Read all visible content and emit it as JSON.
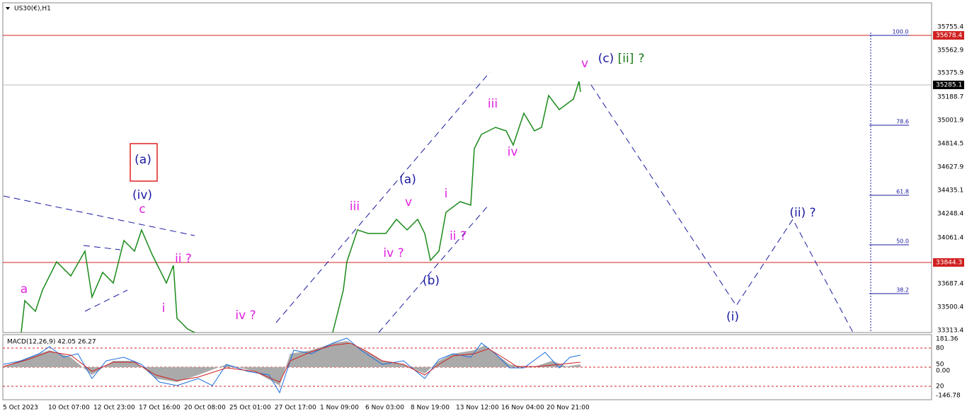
{
  "header": {
    "symbol": "US30(€),H1"
  },
  "price_axis": {
    "labels": [
      "35755.4",
      "35562.9",
      "35375.9",
      "35188.7",
      "35001.9",
      "34814.5",
      "34627.9",
      "34435.1",
      "34248.4",
      "34061.4",
      "33687.4",
      "33500.4",
      "33313.4"
    ],
    "markers": [
      "35678.4",
      "35285.1",
      "33844.3"
    ]
  },
  "time_axis": {
    "labels": [
      "5 Oct 2023",
      "10 Oct 07:00",
      "12 Oct 23:00",
      "17 Oct 16:00",
      "20 Oct 08:00",
      "25 Oct 01:00",
      "27 Oct 17:00",
      "1 Nov 09:00",
      "6 Nov 03:00",
      "8 Nov 19:00",
      "13 Nov 12:00",
      "16 Nov 04:00",
      "20 Nov 21:00"
    ]
  },
  "fib_levels": [
    "100.0",
    "78.6",
    "61.8",
    "50.0",
    "38.2"
  ],
  "wave_labels": [
    "(a)",
    "(iv)",
    "c",
    "a",
    "ii ?",
    "i",
    "iv ?",
    "iii",
    "v",
    "(a)",
    "iv ?",
    "(b)",
    "i",
    "ii ?",
    "iii",
    "iv",
    "v",
    "(c)",
    "[ii]",
    "?",
    "(i)",
    "(ii) ?"
  ],
  "macd": {
    "label": "MACD(12,26,9) 42.05 26.27",
    "axis": [
      "181.36",
      "80",
      "50",
      "0.00",
      "20",
      "-146.78"
    ]
  }
}
